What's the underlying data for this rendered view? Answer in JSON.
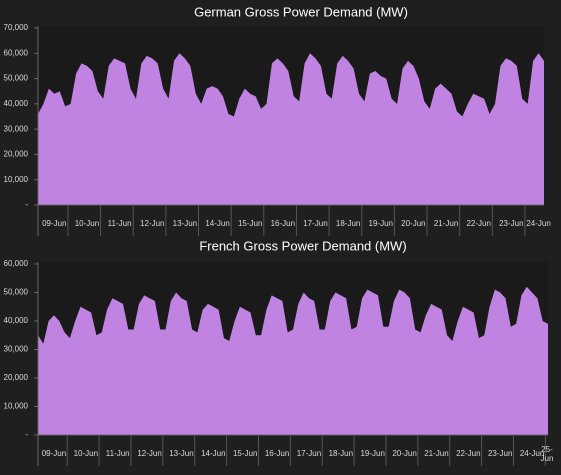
{
  "chart_data": [
    {
      "type": "area",
      "title": "German Gross Power Demand (MW)",
      "color": "#c183e2",
      "categories": [
        null,
        null,
        null,
        "09-Jun",
        null,
        null,
        null,
        null,
        null,
        "10-Jun",
        null,
        null,
        null,
        null,
        null,
        "11-Jun",
        null,
        null,
        null,
        null,
        null,
        "12-Jun",
        null,
        null,
        null,
        null,
        null,
        "13-Jun",
        null,
        null,
        null,
        null,
        null,
        "14-Jun",
        null,
        null,
        null,
        null,
        null,
        "15-Jun",
        null,
        null,
        null,
        null,
        null,
        "16-Jun",
        null,
        null,
        null,
        null,
        null,
        "17-Jun",
        null,
        null,
        null,
        null,
        null,
        "18-Jun",
        null,
        null,
        null,
        null,
        null,
        "19-Jun",
        null,
        null,
        null,
        null,
        null,
        "20-Jun",
        null,
        null,
        null,
        null,
        null,
        "21-Jun",
        null,
        null,
        null,
        null,
        null,
        "22-Jun",
        null,
        null,
        null,
        null,
        null,
        "23-Jun",
        null,
        null,
        null,
        null,
        "24-Jun",
        null
      ],
      "values": [
        36000,
        40000,
        46000,
        44000,
        45000,
        39000,
        40000,
        52000,
        56000,
        55000,
        53000,
        45000,
        42000,
        55000,
        58000,
        57000,
        56000,
        46000,
        42000,
        56000,
        59000,
        58000,
        56000,
        46000,
        42000,
        57000,
        60000,
        58000,
        55000,
        44000,
        40000,
        46000,
        47000,
        46000,
        43000,
        36000,
        35000,
        42000,
        46000,
        44000,
        43000,
        38000,
        40000,
        56000,
        58000,
        56000,
        53000,
        43000,
        41000,
        56000,
        60000,
        58000,
        55000,
        44000,
        42000,
        56000,
        59000,
        57000,
        54000,
        44000,
        41000,
        52000,
        53000,
        51000,
        50000,
        42000,
        40000,
        54000,
        57000,
        55000,
        50000,
        41000,
        38000,
        46000,
        48000,
        46000,
        44000,
        37000,
        35000,
        40000,
        44000,
        43000,
        42000,
        36000,
        40000,
        55000,
        58000,
        57000,
        55000,
        42000,
        40000,
        57000,
        60000,
        57000
      ],
      "ylim": [
        0,
        70000
      ],
      "yticks": [
        {
          "value": 0,
          "label": "-"
        },
        {
          "value": 10000,
          "label": "10,000"
        },
        {
          "value": 20000,
          "label": "20,000"
        },
        {
          "value": 30000,
          "label": "30,000"
        },
        {
          "value": 40000,
          "label": "40,000"
        },
        {
          "value": 50000,
          "label": "50,000"
        },
        {
          "value": 60000,
          "label": "60,000"
        },
        {
          "value": 70000,
          "label": "70,000"
        }
      ]
    },
    {
      "type": "area",
      "title": "French Gross Power Demand (MW)",
      "color": "#c183e2",
      "categories": [
        null,
        null,
        null,
        "09-Jun",
        null,
        null,
        null,
        null,
        null,
        "10-Jun",
        null,
        null,
        null,
        null,
        null,
        "11-Jun",
        null,
        null,
        null,
        null,
        null,
        "12-Jun",
        null,
        null,
        null,
        null,
        null,
        "13-Jun",
        null,
        null,
        null,
        null,
        null,
        "14-Jun",
        null,
        null,
        null,
        null,
        null,
        "15-Jun",
        null,
        null,
        null,
        null,
        null,
        "16-Jun",
        null,
        null,
        null,
        null,
        null,
        "17-Jun",
        null,
        null,
        null,
        null,
        null,
        "18-Jun",
        null,
        null,
        null,
        null,
        null,
        "19-Jun",
        null,
        null,
        null,
        null,
        null,
        "20-Jun",
        null,
        null,
        null,
        null,
        null,
        "21-Jun",
        null,
        null,
        null,
        null,
        null,
        "22-Jun",
        null,
        null,
        null,
        null,
        null,
        "23-Jun",
        null,
        null,
        null,
        null,
        null,
        "24-Jun",
        null,
        null,
        "25-Jun"
      ],
      "values": [
        35000,
        32000,
        40000,
        42000,
        40000,
        36000,
        34000,
        40000,
        45000,
        44000,
        43000,
        35000,
        36000,
        44000,
        48000,
        47000,
        46000,
        37000,
        37000,
        46000,
        49000,
        48000,
        47000,
        37000,
        37000,
        47000,
        50000,
        48000,
        47000,
        37000,
        36000,
        44000,
        46000,
        45000,
        44000,
        34000,
        33000,
        40000,
        45000,
        44000,
        43000,
        35000,
        35000,
        44000,
        49000,
        48000,
        47000,
        36000,
        37000,
        46000,
        50000,
        48000,
        47000,
        37000,
        37000,
        47000,
        50000,
        49000,
        48000,
        37000,
        38000,
        48000,
        51000,
        50000,
        49000,
        38000,
        38000,
        47000,
        51000,
        50000,
        48000,
        37000,
        36000,
        42000,
        46000,
        45000,
        44000,
        35000,
        33000,
        40000,
        45000,
        44000,
        43000,
        34000,
        35000,
        45000,
        51000,
        50000,
        48000,
        38000,
        39000,
        49000,
        52000,
        50000,
        48000,
        40000,
        39000
      ],
      "ylim": [
        0,
        60000
      ],
      "yticks": [
        {
          "value": 0,
          "label": "-"
        },
        {
          "value": 10000,
          "label": "10,000"
        },
        {
          "value": 20000,
          "label": "20,000"
        },
        {
          "value": 30000,
          "label": "30,000"
        },
        {
          "value": 40000,
          "label": "40,000"
        },
        {
          "value": 50000,
          "label": "50,000"
        },
        {
          "value": 60000,
          "label": "60,000"
        }
      ]
    }
  ]
}
